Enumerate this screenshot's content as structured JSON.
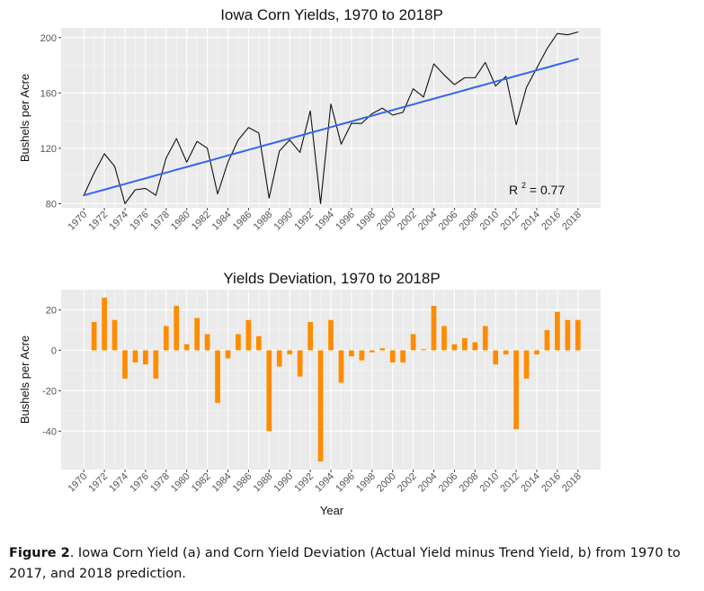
{
  "chart_data": [
    {
      "type": "line",
      "title": "Iowa Corn Yields, 1970 to 2018P",
      "xlabel": "",
      "ylabel": "Bushels per Acre",
      "ylim": [
        77,
        207
      ],
      "yticks": [
        80,
        120,
        160,
        200
      ],
      "x": [
        1970,
        1971,
        1972,
        1973,
        1974,
        1975,
        1976,
        1977,
        1978,
        1979,
        1980,
        1981,
        1982,
        1983,
        1984,
        1985,
        1986,
        1987,
        1988,
        1989,
        1990,
        1991,
        1992,
        1993,
        1994,
        1995,
        1996,
        1997,
        1998,
        1999,
        2000,
        2001,
        2002,
        2003,
        2004,
        2005,
        2006,
        2007,
        2008,
        2009,
        2010,
        2011,
        2012,
        2013,
        2014,
        2015,
        2016,
        2017,
        2018
      ],
      "xticks": [
        1970,
        1972,
        1974,
        1976,
        1978,
        1980,
        1982,
        1984,
        1986,
        1988,
        1990,
        1992,
        1994,
        1996,
        1998,
        2000,
        2002,
        2004,
        2006,
        2008,
        2010,
        2012,
        2014,
        2016,
        2018
      ],
      "series": [
        {
          "values": [
            86,
            102,
            116,
            107,
            80,
            90,
            91,
            86,
            113,
            127,
            110,
            125,
            120,
            87,
            110,
            126,
            135,
            131,
            84,
            118,
            126,
            117,
            147,
            80,
            152,
            123,
            138,
            138,
            145,
            149,
            144,
            146,
            163,
            157,
            181,
            173,
            166,
            171,
            171,
            182,
            165,
            172,
            137,
            164,
            178,
            192,
            203,
            202,
            204
          ],
          "color": "#111111"
        },
        {
          "values": [
            86,
            88.1,
            90.1,
            92.2,
            94.2,
            96.3,
            98.3,
            100.4,
            102.4,
            104.5,
            106.5,
            108.6,
            110.6,
            112.7,
            114.8,
            116.8,
            118.9,
            120.9,
            123,
            125,
            127.1,
            129.1,
            131.2,
            133.2,
            135.3,
            137.4,
            139.4,
            141.5,
            143.5,
            145.6,
            147.6,
            149.7,
            151.7,
            153.8,
            155.8,
            157.9,
            159.9,
            162,
            164.1,
            166.1,
            168.2,
            170.2,
            172.3,
            174.3,
            176.4,
            178.4,
            180.5,
            182.5,
            184.6
          ],
          "color": "#3366ee"
        }
      ],
      "annotation": {
        "base": "R",
        "sup": "2",
        "text": " = 0.77"
      },
      "grid": true
    },
    {
      "type": "bar",
      "title": "Yields Deviation, 1970 to 2018P",
      "xlabel": "Year",
      "ylabel": "Bushels per Acre",
      "ylim": [
        -59,
        30
      ],
      "yticks": [
        -40,
        -20,
        0,
        20
      ],
      "x": [
        1971,
        1972,
        1973,
        1974,
        1975,
        1976,
        1977,
        1978,
        1979,
        1980,
        1981,
        1982,
        1983,
        1984,
        1985,
        1986,
        1987,
        1988,
        1989,
        1990,
        1991,
        1992,
        1993,
        1994,
        1995,
        1996,
        1997,
        1998,
        1999,
        2000,
        2001,
        2002,
        2003,
        2004,
        2005,
        2006,
        2007,
        2008,
        2009,
        2010,
        2011,
        2012,
        2013,
        2014,
        2015,
        2016,
        2017,
        2018
      ],
      "xticks": [
        1970,
        1972,
        1974,
        1976,
        1978,
        1980,
        1982,
        1984,
        1986,
        1988,
        1990,
        1992,
        1994,
        1996,
        1998,
        2000,
        2002,
        2004,
        2006,
        2008,
        2010,
        2012,
        2014,
        2016,
        2018
      ],
      "values": [
        14,
        26,
        15,
        -14,
        -6,
        -7,
        -14,
        12,
        22,
        3,
        16,
        8,
        -26,
        -4,
        8,
        15,
        7,
        -40,
        -8,
        -2,
        -13,
        14,
        -55,
        15,
        -16,
        -3,
        -5,
        -1,
        1,
        -6,
        -6,
        8,
        0.5,
        22,
        12,
        3,
        6,
        4,
        12,
        -7,
        -2,
        -39,
        -14,
        -2,
        10,
        19,
        15,
        15
      ],
      "color": "#ff8c00",
      "grid": true
    }
  ],
  "caption": {
    "label": "Figure 2",
    "text": ". Iowa Corn Yield (a) and Corn Yield Deviation (Actual Yield minus Trend Yield, b) from 1970 to 2017, and 2018 prediction."
  }
}
